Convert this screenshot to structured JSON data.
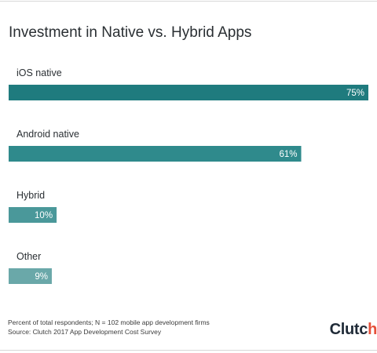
{
  "chart_data": {
    "type": "bar",
    "orientation": "horizontal",
    "title": "Investment in Native vs. Hybrid Apps",
    "categories": [
      "iOS native",
      "Android native",
      "Hybrid",
      "Other"
    ],
    "values": [
      75,
      61,
      10,
      9
    ],
    "value_labels": [
      "75%",
      "61%",
      "10%",
      "9%"
    ],
    "xlim": [
      0,
      75
    ],
    "bar_colors": [
      "#1f7b7e",
      "#2f8a8c",
      "#4a989a",
      "#6aa8a9"
    ],
    "grid": false,
    "legend": "none"
  },
  "footer": {
    "note": "Percent of total respondents; N = 102 mobile app development firms",
    "source": "Source: Clutch 2017 App Development Cost Survey"
  },
  "brand": {
    "logo_text": "Clutch",
    "accent": "#e5503a"
  }
}
